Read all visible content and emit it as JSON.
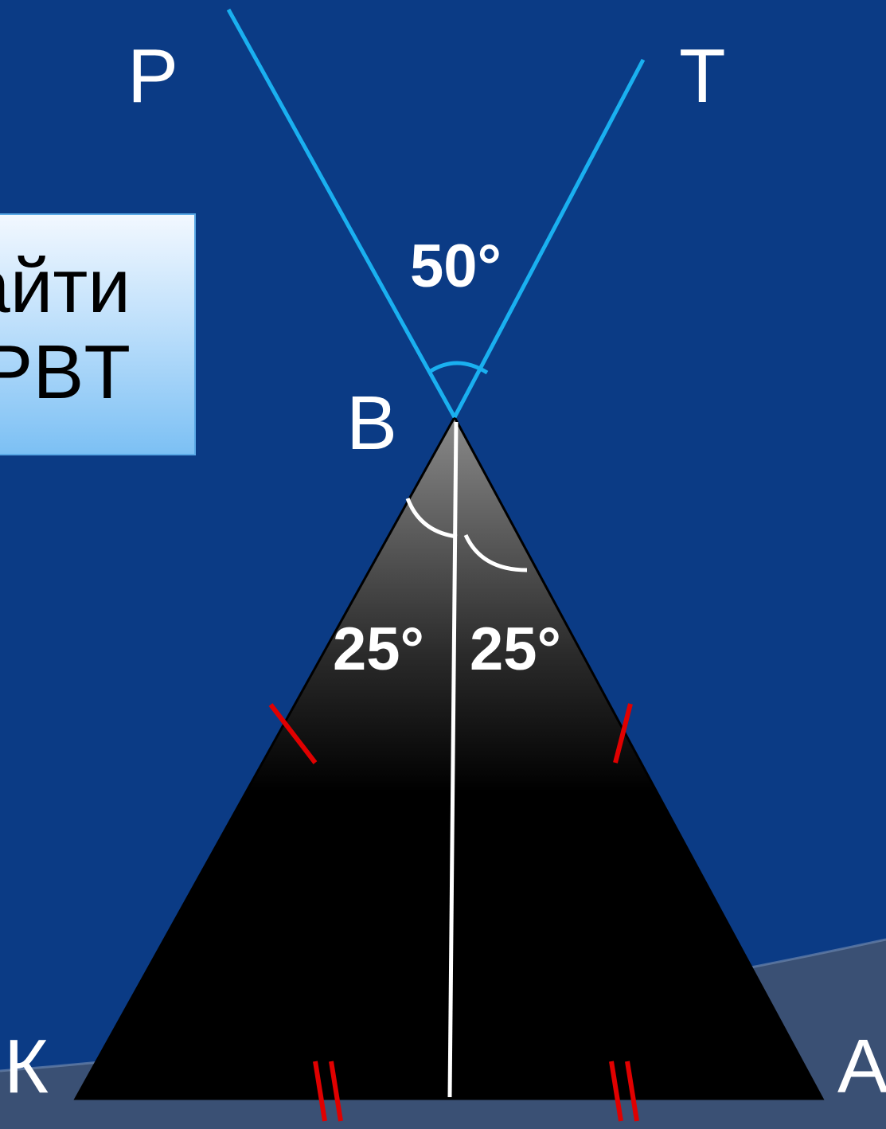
{
  "task": {
    "line1": "айти",
    "line2": "PBT"
  },
  "vertices": {
    "P": "P",
    "T": "T",
    "B": "B",
    "K": "К",
    "A": "A"
  },
  "angles": {
    "top": "50°",
    "left_half": "25°",
    "right_half": "25°"
  },
  "colors": {
    "background": "#0b3b85",
    "ray": "#1ab0f0",
    "tick": "#e00000",
    "bisector": "#ffffff"
  }
}
